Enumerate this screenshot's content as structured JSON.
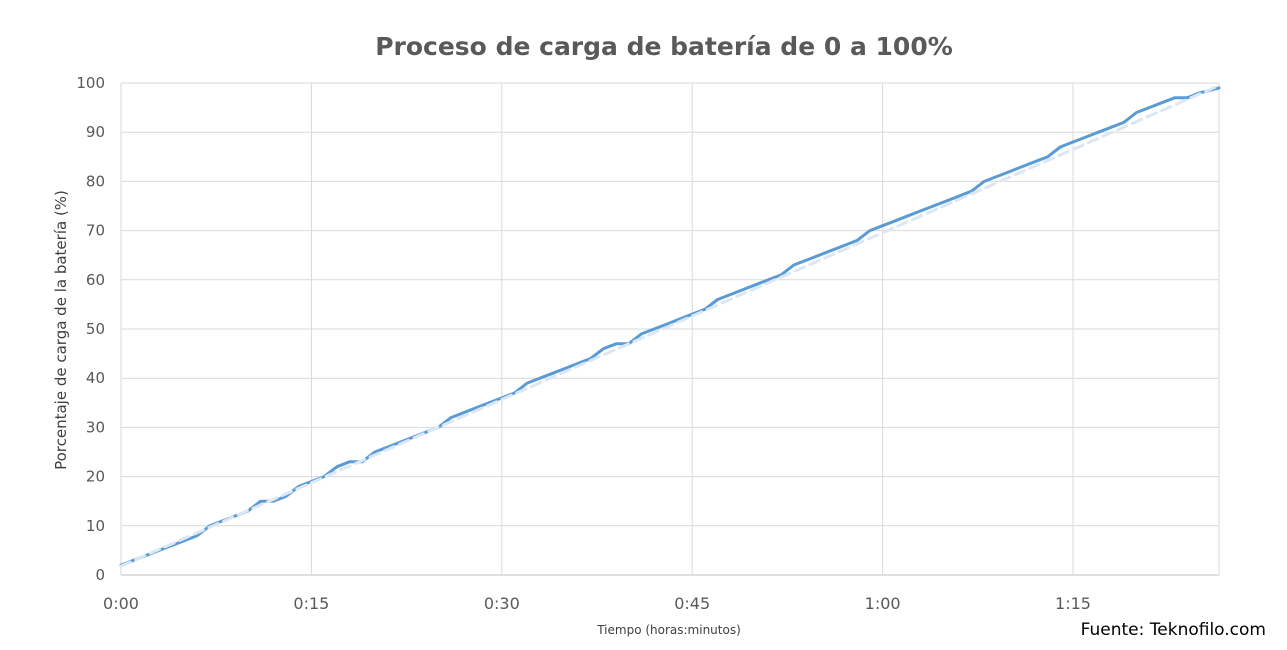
{
  "chart_data": {
    "type": "line",
    "title": "Proceso de carga de batería de 0 a 100%",
    "xlabel": "Tiempo (horas:minutos)",
    "ylabel": "Porcentaje de carga de la batería (%)",
    "source": "Fuente: Teknofilo.com",
    "xlim_minutes": [
      0,
      86.5
    ],
    "ylim": [
      0,
      100
    ],
    "x_ticks": [
      {
        "minutes": 0,
        "label": "0:00"
      },
      {
        "minutes": 15,
        "label": "0:15"
      },
      {
        "minutes": 30,
        "label": "0:30"
      },
      {
        "minutes": 45,
        "label": "0:45"
      },
      {
        "minutes": 60,
        "label": "1:00"
      },
      {
        "minutes": 75,
        "label": "1:15"
      }
    ],
    "y_ticks": [
      0,
      10,
      20,
      30,
      40,
      50,
      60,
      70,
      80,
      90,
      100
    ],
    "grid": true,
    "series": [
      {
        "style": "solid",
        "color": "#5b9bd5",
        "x_minutes": [
          0,
          1,
          2,
          3,
          4,
          5,
          6,
          7,
          8,
          9,
          10,
          11,
          12,
          13,
          14,
          15,
          16,
          17,
          18,
          19,
          20,
          21,
          22,
          23,
          24,
          25,
          26,
          27,
          28,
          29,
          30,
          31,
          32,
          33,
          34,
          35,
          36,
          37,
          38,
          39,
          40,
          41,
          42,
          43,
          44,
          45,
          46,
          47,
          48,
          49,
          50,
          51,
          52,
          53,
          54,
          55,
          56,
          57,
          58,
          59,
          60,
          61,
          62,
          63,
          64,
          65,
          66,
          67,
          68,
          69,
          70,
          71,
          72,
          73,
          74,
          75,
          76,
          77,
          78,
          79,
          80,
          81,
          82,
          83,
          84,
          85,
          86.5
        ],
        "y": [
          2,
          3,
          4,
          5,
          6,
          7,
          8,
          10,
          11,
          12,
          13,
          15,
          15,
          16,
          18,
          19,
          20,
          22,
          23,
          23,
          25,
          26,
          27,
          28,
          29,
          30,
          32,
          33,
          34,
          35,
          36,
          37,
          39,
          40,
          41,
          42,
          43,
          44,
          46,
          47,
          47,
          49,
          50,
          51,
          52,
          53,
          54,
          56,
          57,
          58,
          59,
          60,
          61,
          63,
          64,
          65,
          66,
          67,
          68,
          70,
          71,
          72,
          73,
          74,
          75,
          76,
          77,
          78,
          80,
          81,
          82,
          83,
          84,
          85,
          87,
          88,
          89,
          90,
          91,
          92,
          94,
          95,
          96,
          97,
          97,
          98,
          99
        ]
      },
      {
        "style": "dashed",
        "color": "#dbe7f5",
        "x_minutes": [
          0,
          86.5
        ],
        "y": [
          1.8,
          99.5
        ]
      }
    ]
  }
}
